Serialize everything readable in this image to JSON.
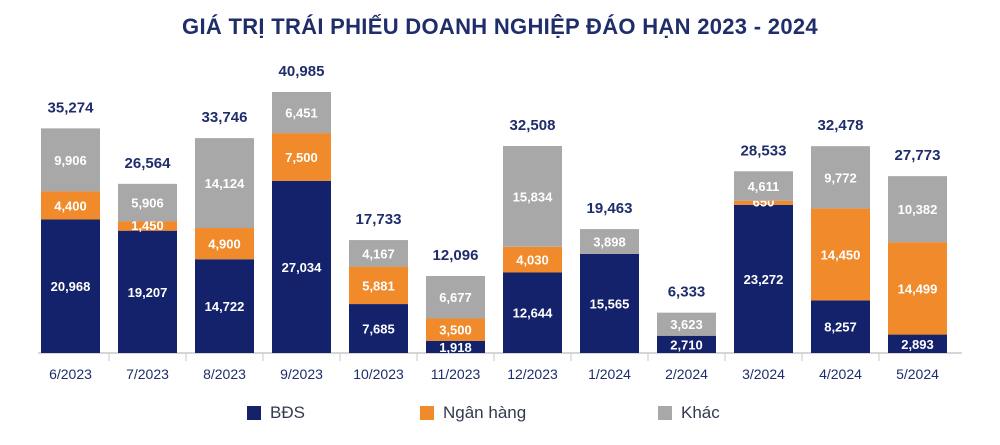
{
  "title": "GIÁ TRỊ TRÁI PHIẾU DOANH NGHIỆP ĐÁO HẠN 2023 - 2024",
  "colors": {
    "bds": "#13226b",
    "ngan_hang": "#f08a2b",
    "khac": "#a8a8a8",
    "total_label": "#1f2d6b",
    "axis": "#c9c9c9"
  },
  "chart_data": {
    "type": "bar",
    "stacked": true,
    "title": "GIÁ TRỊ TRÁI PHIẾU DOANH NGHIỆP ĐÁO HẠN 2023 - 2024",
    "categories": [
      "6/2023",
      "7/2023",
      "8/2023",
      "9/2023",
      "10/2023",
      "11/2023",
      "12/2023",
      "1/2024",
      "2/2024",
      "3/2024",
      "4/2024",
      "5/2024"
    ],
    "series": [
      {
        "name": "BĐS",
        "values": [
          20968,
          19207,
          14722,
          27034,
          7685,
          1918,
          12644,
          15565,
          2710,
          23272,
          8257,
          2893
        ],
        "labels": [
          "20,968",
          "19,207",
          "14,722",
          "27,034",
          "7,685",
          "1,918",
          "12,644",
          "15,565",
          "2,710",
          "23,272",
          "8,257",
          "2,893"
        ]
      },
      {
        "name": "Ngân hàng",
        "values": [
          4400,
          1450,
          4900,
          7500,
          5881,
          3500,
          4030,
          0,
          0,
          650,
          14450,
          14499
        ],
        "labels": [
          "4,400",
          "1,450",
          "4,900",
          "7,500",
          "5,881",
          "3,500",
          "4,030",
          "",
          "",
          "650",
          "14,450",
          "14,499"
        ]
      },
      {
        "name": "Khác",
        "values": [
          9906,
          5906,
          14124,
          6451,
          4167,
          6677,
          15834,
          3898,
          3623,
          4611,
          9772,
          10382
        ],
        "labels": [
          "9,906",
          "5,906",
          "14,124",
          "6,451",
          "4,167",
          "6,677",
          "15,834",
          "3,898",
          "3,623",
          "4,611",
          "9,772",
          "10,382"
        ]
      }
    ],
    "totals": [
      35274,
      26564,
      33746,
      40985,
      17733,
      12096,
      32508,
      19463,
      6333,
      28533,
      32478,
      27773
    ],
    "total_labels": [
      "35,274",
      "26,564",
      "33,746",
      "40,985",
      "17,733",
      "12,096",
      "32,508",
      "19,463",
      "6,333",
      "28,533",
      "32,478",
      "27,773"
    ],
    "ylim": [
      0,
      41000
    ],
    "grid": false,
    "legend": "bottom"
  },
  "legend": [
    {
      "label": "BĐS",
      "color": "#13226b"
    },
    {
      "label": "Ngân hàng",
      "color": "#f08a2b"
    },
    {
      "label": "Khác",
      "color": "#a8a8a8"
    }
  ]
}
